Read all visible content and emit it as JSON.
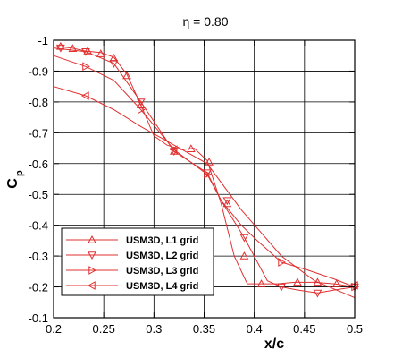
{
  "chart_data": {
    "type": "line",
    "title": "η = 0.80",
    "xlabel": "x/c",
    "ylabel": "C",
    "ylabel_subscript": "p",
    "xlim": [
      0.2,
      0.5
    ],
    "ylim": [
      -0.1,
      -1.0
    ],
    "y_inverted": true,
    "xticks": [
      0.2,
      0.25,
      0.3,
      0.35,
      0.4,
      0.45,
      0.5
    ],
    "xtick_labels": [
      "0.2",
      "0.25",
      "0.3",
      "0.35",
      "0.4",
      "0.45",
      "0.5"
    ],
    "yticks": [
      -1,
      -0.9,
      -0.8,
      -0.7,
      -0.6,
      -0.5,
      -0.4,
      -0.3,
      -0.2,
      -0.1
    ],
    "ytick_labels": [
      "-1",
      "-0.9",
      "-0.8",
      "-0.7",
      "-0.6",
      "-0.5",
      "-0.4",
      "-0.3",
      "-0.2",
      "-0.1"
    ],
    "grid": true,
    "legend_position": "bottom-left",
    "line_color": "#e03030",
    "series": [
      {
        "name": "USM3D, L1 grid",
        "marker": "triangle-up",
        "x": [
          0.203,
          0.218,
          0.232,
          0.247,
          0.26,
          0.273,
          0.287,
          0.3,
          0.313,
          0.327,
          0.34,
          0.353,
          0.367,
          0.38,
          0.393,
          0.407,
          0.423,
          0.44,
          0.46,
          0.48,
          0.5
        ],
        "y": [
          -0.98,
          -0.975,
          -0.965,
          -0.96,
          -0.945,
          -0.89,
          -0.79,
          -0.69,
          -0.66,
          -0.645,
          -0.65,
          -0.61,
          -0.47,
          -0.3,
          -0.21,
          -0.21,
          -0.21,
          -0.215,
          -0.215,
          -0.21,
          -0.2
        ],
        "markers_x": [
          0.207,
          0.219,
          0.234,
          0.247,
          0.26,
          0.273,
          0.287,
          0.32,
          0.337,
          0.355,
          0.373,
          0.39,
          0.407,
          0.443,
          0.463,
          0.482
        ],
        "markers_y": [
          -0.98,
          -0.973,
          -0.965,
          -0.956,
          -0.942,
          -0.885,
          -0.79,
          -0.64,
          -0.648,
          -0.605,
          -0.47,
          -0.3,
          -0.21,
          -0.215,
          -0.215,
          -0.21
        ]
      },
      {
        "name": "USM3D, L2 grid",
        "marker": "triangle-down",
        "x": [
          0.2,
          0.232,
          0.26,
          0.287,
          0.32,
          0.353,
          0.367,
          0.39,
          0.413,
          0.427,
          0.443,
          0.463,
          0.48,
          0.5
        ],
        "y": [
          -0.975,
          -0.963,
          -0.925,
          -0.8,
          -0.64,
          -0.57,
          -0.48,
          -0.36,
          -0.22,
          -0.2,
          -0.19,
          -0.18,
          -0.19,
          -0.2
        ],
        "markers_x": [
          0.207,
          0.232,
          0.26,
          0.287,
          0.32,
          0.353,
          0.373,
          0.39,
          0.427,
          0.463,
          0.5
        ],
        "markers_y": [
          -0.975,
          -0.963,
          -0.925,
          -0.8,
          -0.64,
          -0.57,
          -0.48,
          -0.36,
          -0.2,
          -0.18,
          -0.2
        ]
      },
      {
        "name": "USM3D, L3 grid",
        "marker": "triangle-right",
        "x": [
          0.2,
          0.232,
          0.26,
          0.287,
          0.32,
          0.353,
          0.367,
          0.387,
          0.403,
          0.427,
          0.453,
          0.48,
          0.5
        ],
        "y": [
          -0.95,
          -0.915,
          -0.87,
          -0.775,
          -0.645,
          -0.565,
          -0.48,
          -0.4,
          -0.35,
          -0.28,
          -0.255,
          -0.225,
          -0.2
        ],
        "markers_x": [
          0.232,
          0.287,
          0.353,
          0.427,
          0.5
        ],
        "markers_y": [
          -0.915,
          -0.775,
          -0.565,
          -0.28,
          -0.2
        ]
      },
      {
        "name": "USM3D, L4 grid",
        "marker": "triangle-left",
        "x": [
          0.2,
          0.232,
          0.26,
          0.287,
          0.32,
          0.353,
          0.387,
          0.427,
          0.46,
          0.5
        ],
        "y": [
          -0.85,
          -0.82,
          -0.775,
          -0.72,
          -0.66,
          -0.6,
          -0.45,
          -0.3,
          -0.22,
          -0.165
        ],
        "markers_x": [
          0.232,
          0.32,
          0.5
        ],
        "markers_y": [
          -0.82,
          -0.645,
          -0.205
        ]
      }
    ]
  }
}
